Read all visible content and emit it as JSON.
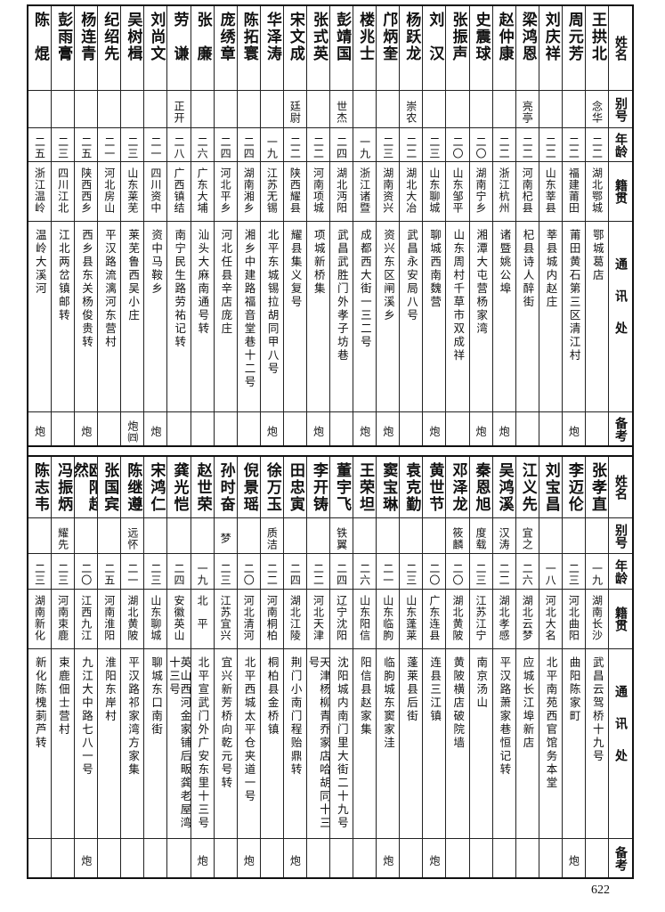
{
  "headers": {
    "name": "姓名",
    "alias": "别号",
    "age": "年龄",
    "origin": "籍贯",
    "address": "通讯处",
    "remark": "备考"
  },
  "top_table": {
    "rows": [
      {
        "name": "王拱北",
        "alias": "念华",
        "age": "二二",
        "origin": "湖北鄂城",
        "address": "鄂城葛店",
        "remark": ""
      },
      {
        "name": "周元芳",
        "alias": "",
        "age": "二二",
        "origin": "福建莆田",
        "address": "莆田黄石第三区清江村",
        "remark": "炮"
      },
      {
        "name": "刘庆祥",
        "alias": "",
        "age": "二二",
        "origin": "山东莘县",
        "address": "莘县城内赵庄",
        "remark": ""
      },
      {
        "name": "梁鸿恩",
        "alias": "亮亭",
        "age": "二二",
        "origin": "河南杞县",
        "address": "杞县诗人醉街",
        "remark": ""
      },
      {
        "name": "赵仲康",
        "alias": "",
        "age": "二二",
        "origin": "浙江杭州",
        "address": "诸暨姚公埠",
        "remark": "炮"
      },
      {
        "name": "史震球",
        "alias": "",
        "age": "二〇",
        "origin": "湖南宁乡",
        "address": "湘潭大屯营杨家湾",
        "remark": "炮"
      },
      {
        "name": "张振声",
        "alias": "",
        "age": "二〇",
        "origin": "山东邹平",
        "address": "山东周村千草市双成祥",
        "remark": ""
      },
      {
        "name": "刘　汉",
        "alias": "",
        "age": "二三",
        "origin": "山东聊城",
        "address": "聊城西南魏营",
        "remark": "炮"
      },
      {
        "name": "杨跃龙",
        "alias": "崇农",
        "age": "二二",
        "origin": "湖北大冶",
        "address": "武昌永安局八号",
        "remark": ""
      },
      {
        "name": "邝炳奎",
        "alias": "",
        "age": "二三",
        "origin": "湖南资兴",
        "address": "资兴东区闸溪乡",
        "remark": "炮"
      },
      {
        "name": "楼兆士",
        "alias": "",
        "age": "一九",
        "origin": "浙江诸暨",
        "address": "成都西大街一三二号",
        "remark": "炮"
      },
      {
        "name": "彭靖国",
        "alias": "世杰",
        "age": "二四",
        "origin": "湖北沔阳",
        "address": "武昌武胜门外孝子坊巷",
        "remark": ""
      },
      {
        "name": "张式英",
        "alias": "",
        "age": "二二",
        "origin": "河南项城",
        "address": "项城新桥集",
        "remark": "炮"
      },
      {
        "name": "宋文成",
        "alias": "廷尉",
        "age": "二二",
        "origin": "陕西耀县",
        "address": "耀县集义复号",
        "remark": ""
      },
      {
        "name": "华泽涛",
        "alias": "",
        "age": "一九",
        "origin": "江苏无锡",
        "address": "北平东城锡拉胡同甲八号",
        "remark": "炮"
      },
      {
        "name": "陈拓寰",
        "alias": "",
        "age": "二四",
        "origin": "湖南湘乡",
        "address": "湘乡中建路福音堂巷十二号",
        "remark": ""
      },
      {
        "name": "庞绣章",
        "alias": "",
        "age": "二四",
        "origin": "河北平乡",
        "address": "河北任县辛店庞庄",
        "remark": ""
      },
      {
        "name": "张　廉",
        "alias": "",
        "age": "二六",
        "origin": "广东大埔",
        "address": "汕头大麻南通号转",
        "remark": ""
      },
      {
        "name": "劳　谦",
        "alias": "正开",
        "age": "二八",
        "origin": "广西镇结",
        "address": "南宁民生路劳祐记转",
        "remark": ""
      },
      {
        "name": "刘尚文",
        "alias": "",
        "age": "二一",
        "origin": "四川资中",
        "address": "资中马鞍乡",
        "remark": "炮"
      },
      {
        "name": "吴树楫",
        "alias": "",
        "age": "二三",
        "origin": "山东莱芜",
        "address": "莱芜鲁西吴小庄",
        "remark": "炮㈣"
      },
      {
        "name": "纪绍先",
        "alias": "",
        "age": "二一",
        "origin": "河北房山",
        "address": "平汉路流漓河东营村",
        "remark": ""
      },
      {
        "name": "杨连青",
        "alias": "",
        "age": "二五",
        "origin": "陕西西乡",
        "address": "西乡县东关杨俊贵转",
        "remark": "炮"
      },
      {
        "name": "彭雨膏",
        "alias": "",
        "age": "二三",
        "origin": "四川江北",
        "address": "江北两岔镇邮转",
        "remark": ""
      },
      {
        "name": "陈　焜",
        "alias": "",
        "age": "二五",
        "origin": "浙江温岭",
        "address": "温岭大溪河",
        "remark": "炮"
      }
    ]
  },
  "bottom_table": {
    "rows": [
      {
        "name": "张孝直",
        "alias": "",
        "age": "一九",
        "origin": "湖南长沙",
        "address": "武昌云驾桥十九号",
        "remark": ""
      },
      {
        "name": "李迈伦",
        "alias": "",
        "age": "二三",
        "origin": "河北曲阳",
        "address": "曲阳陈家町",
        "remark": "炮"
      },
      {
        "name": "刘宝昌",
        "alias": "",
        "age": "一八",
        "origin": "河北大名",
        "address": "北平南苑西官馆务本堂",
        "remark": ""
      },
      {
        "name": "江义先",
        "alias": "宜之",
        "age": "二六",
        "origin": "湖北云梦",
        "address": "应城长江埠新店",
        "remark": ""
      },
      {
        "name": "吴鸿溪",
        "alias": "汉涛",
        "age": "二二",
        "origin": "湖北孝感",
        "address": "平汉路萧家巷恒记转",
        "remark": ""
      },
      {
        "name": "秦恩旭",
        "alias": "度载",
        "age": "二三",
        "origin": "江苏江宁",
        "address": "南京汤山",
        "remark": ""
      },
      {
        "name": "邓泽龙",
        "alias": "筱麟",
        "age": "二〇",
        "origin": "湖北黄陂",
        "address": "黄陂横店破院墙",
        "remark": ""
      },
      {
        "name": "黄世节",
        "alias": "",
        "age": "二〇",
        "origin": "广东连县",
        "address": "连县三江镇",
        "remark": "炮"
      },
      {
        "name": "袁克勤",
        "alias": "",
        "age": "二三",
        "origin": "山东蓬莱",
        "address": "蓬莱县后街",
        "remark": ""
      },
      {
        "name": "窦宝琳",
        "alias": "",
        "age": "二一",
        "origin": "山东临朐",
        "address": "临朐城东窦家洼",
        "remark": "炮"
      },
      {
        "name": "王荣坦",
        "alias": "",
        "age": "二六",
        "origin": "山东阳信",
        "address": "阳信县赵家集",
        "remark": ""
      },
      {
        "name": "董宇飞",
        "alias": "铁翼",
        "age": "二四",
        "origin": "辽宁沈阳",
        "address": "沈阳城内南门里大街二十九号",
        "remark": ""
      },
      {
        "name": "李开铸",
        "alias": "",
        "age": "二二",
        "origin": "河北天津",
        "address": "天津杨柳青乔家店哈胡同十三号",
        "remark": ""
      },
      {
        "name": "田忠寅",
        "alias": "",
        "age": "二四",
        "origin": "湖北江陵",
        "address": "荆门小南门程贻鼎转",
        "remark": "炮"
      },
      {
        "name": "徐万玉",
        "alias": "质洁",
        "age": "二二",
        "origin": "河南桐柏",
        "address": "桐柏县金桥镇",
        "remark": ""
      },
      {
        "name": "倪景瑶",
        "alias": "",
        "age": "二〇",
        "origin": "河北清河",
        "address": "北平西城太平仓夹道一号",
        "remark": "炮"
      },
      {
        "name": "孙时奋",
        "alias": "梦",
        "age": "二三",
        "origin": "江苏宜兴",
        "address": "宜兴新芳桥向乾元号转",
        "remark": ""
      },
      {
        "name": "赵世荣",
        "alias": "",
        "age": "一九",
        "origin": "北　平",
        "address": "北平宣武门外广安东里十三号",
        "remark": "炮"
      },
      {
        "name": "龚光恺",
        "alias": "",
        "age": "二四",
        "origin": "安徽英山",
        "address": "英山西河金家铺后畈龚老屋湾十三号",
        "remark": ""
      },
      {
        "name": "宋鸿仁",
        "alias": "",
        "age": "二三",
        "origin": "山东聊城",
        "address": "聊城东口南街",
        "remark": ""
      },
      {
        "name": "陈继遵",
        "alias": "远怀",
        "age": "二一",
        "origin": "湖北黄陂",
        "address": "平汉路祁家湾方家集",
        "remark": ""
      },
      {
        "name": "张国宾",
        "alias": "",
        "age": "二五",
        "origin": "河南淮阳",
        "address": "淮阳东岸村",
        "remark": ""
      },
      {
        "name": "欧阳超然",
        "alias": "",
        "age": "二〇",
        "origin": "江西九江",
        "address": "九江大中路七八一号",
        "remark": "炮"
      },
      {
        "name": "冯振炳",
        "alias": "耀先",
        "age": "二三",
        "origin": "河南束鹿",
        "address": "束鹿佃士营村",
        "remark": ""
      },
      {
        "name": "陈志韦",
        "alias": "",
        "age": "二三",
        "origin": "湖南新化",
        "address": "新化陈槐莿芦转",
        "remark": ""
      }
    ]
  },
  "page_number": "622"
}
